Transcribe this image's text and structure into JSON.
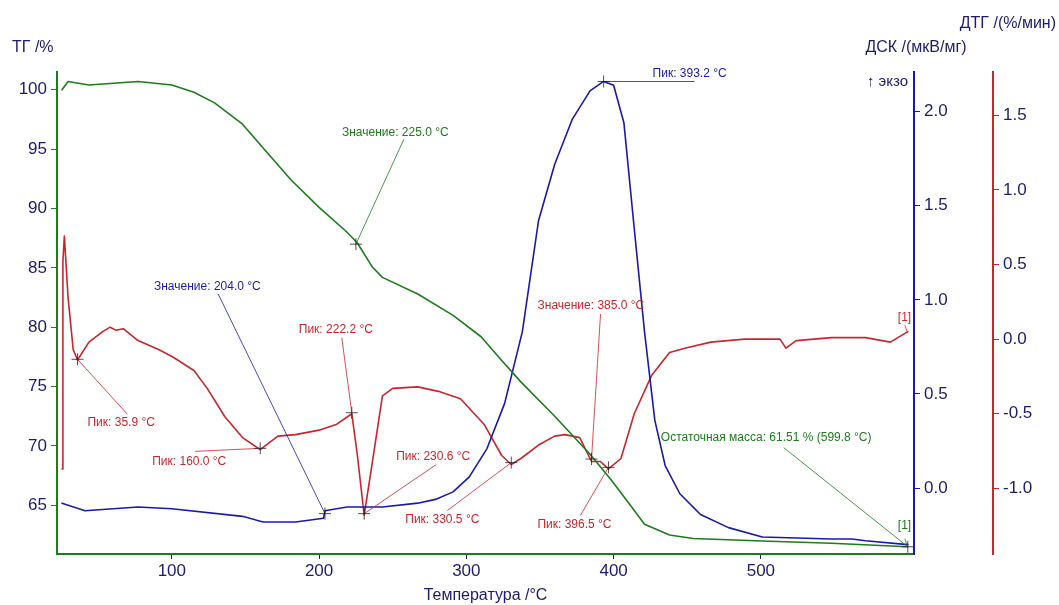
{
  "chart_data": {
    "type": "line",
    "xlabel": "Температура /°C",
    "ylabel": "ТГ /%",
    "y2label": "ДСК /(мкВ/мг)",
    "y3label": "ДТГ /(%/мин)",
    "xlim": [
      22,
      604
    ],
    "xticks": [
      100,
      200,
      300,
      400,
      500
    ],
    "ylim": [
      60.9,
      101.5
    ],
    "yticks": [
      65,
      70,
      75,
      80,
      85,
      90,
      95,
      100
    ],
    "y2lim": [
      -0.35,
      2.21
    ],
    "y2ticks": [
      {
        "value": 0,
        "label": "0.0"
      },
      {
        "value": 0.5,
        "label": "0.5"
      },
      {
        "value": 1,
        "label": "1.0"
      },
      {
        "value": 1.5,
        "label": "1.5"
      },
      {
        "value": 2,
        "label": "2.0"
      }
    ],
    "y3lim": [
      -1.44,
      1.79
    ],
    "y3ticks": [
      {
        "value": -1,
        "label": "-1.0"
      },
      {
        "value": -0.5,
        "label": "-0.5"
      },
      {
        "value": 0,
        "label": "0.0"
      },
      {
        "value": 0.5,
        "label": "0.5"
      },
      {
        "value": 1,
        "label": "1.0"
      },
      {
        "value": 1.5,
        "label": "1.5"
      }
    ],
    "grid": false,
    "legend": false,
    "marker": "none",
    "series": [
      {
        "color": "#1e7b1e",
        "x": [
          25.4,
          29.5,
          43.7,
          77,
          100,
          115,
          129,
          148,
          162,
          181,
          200,
          219,
          226,
          236,
          243,
          267,
          291,
          310,
          324,
          337,
          360,
          384,
          398,
          412,
          421,
          438,
          454,
          501,
          548,
          599.8
        ],
        "values": [
          100.0,
          100.7,
          100.4,
          100.7,
          100.4,
          99.8,
          98.9,
          97.1,
          95.1,
          92.4,
          90.1,
          88.0,
          87.1,
          85.1,
          84.2,
          82.8,
          81.0,
          79.2,
          77.2,
          75.4,
          72.5,
          69.3,
          67.2,
          64.9,
          63.4,
          62.5,
          62.2,
          62.0,
          61.8,
          61.51
        ]
      },
      {
        "color": "#1a1aa8",
        "axis": "y2",
        "x": [
          25.4,
          41,
          77,
          100,
          148,
          162,
          184,
          203,
          204,
          219,
          229,
          243,
          267,
          279,
          291,
          302,
          314,
          326,
          338,
          349,
          360,
          372,
          384,
          393.2,
          400,
          407,
          414,
          421,
          428,
          435,
          445,
          459,
          478,
          501,
          548,
          562,
          571,
          599.8
        ],
        "values": [
          -0.08,
          -0.12,
          -0.1,
          -0.11,
          -0.15,
          -0.18,
          -0.18,
          -0.16,
          -0.12,
          -0.1,
          -0.1,
          -0.1,
          -0.08,
          -0.06,
          -0.02,
          0.06,
          0.21,
          0.45,
          0.83,
          1.42,
          1.72,
          1.96,
          2.11,
          2.16,
          2.14,
          1.94,
          1.38,
          0.83,
          0.36,
          0.12,
          -0.03,
          -0.14,
          -0.21,
          -0.26,
          -0.27,
          -0.27,
          -0.28,
          -0.3
        ]
      },
      {
        "color": "#c8262c",
        "axis": "y3",
        "x": [
          25.4,
          26,
          27,
          29.5,
          33,
          35.9,
          43.7,
          53,
          58,
          62,
          67,
          77,
          91,
          100.7,
          115,
          124,
          136,
          148,
          160,
          172,
          184,
          200,
          212,
          222.2,
          226,
          230.6,
          235,
          243,
          250,
          267,
          281,
          296,
          312,
          324,
          330.5,
          337,
          349,
          360,
          367,
          377,
          385,
          391,
          396.5,
          405,
          414,
          426,
          438,
          449,
          466,
          489,
          513,
          517,
          524,
          548,
          571,
          588,
          599.8
        ],
        "values": [
          -0.87,
          0.52,
          0.69,
          0.28,
          -0.07,
          -0.14,
          -0.02,
          0.05,
          0.08,
          0.06,
          0.07,
          -0.01,
          -0.07,
          -0.12,
          -0.21,
          -0.33,
          -0.52,
          -0.66,
          -0.74,
          -0.65,
          -0.64,
          -0.61,
          -0.57,
          -0.5,
          -0.78,
          -1.18,
          -0.9,
          -0.38,
          -0.33,
          -0.32,
          -0.35,
          -0.4,
          -0.57,
          -0.78,
          -0.84,
          -0.8,
          -0.71,
          -0.65,
          -0.64,
          -0.66,
          -0.82,
          -0.82,
          -0.87,
          -0.8,
          -0.5,
          -0.24,
          -0.09,
          -0.06,
          -0.02,
          0.0,
          0.0,
          -0.06,
          -0.01,
          0.01,
          0.01,
          -0.02,
          0.05
        ]
      }
    ],
    "annotations": [
      {
        "text": "Значение: 225.0 °C",
        "x": 225,
        "y": 87.0
      },
      {
        "text": "Значение: 204.0 °C",
        "x": 204,
        "y": 64.3
      },
      {
        "text": "Пик: 35.9 °C",
        "x": 35.9,
        "y": 77.3
      },
      {
        "text": "Пик: 160.0 °C",
        "x": 160,
        "y": 69.8
      },
      {
        "text": "Пик: 222.2 °C",
        "x": 222.2,
        "y": 72.8
      },
      {
        "text": "Пик: 230.6 °C",
        "x": 230.6,
        "y": 64.3
      },
      {
        "text": "Пик: 330.5 °C",
        "x": 330.5,
        "y": 68.6
      },
      {
        "text": "Пик: 393.2 °C",
        "x": 393.2,
        "y": 100.7
      },
      {
        "text": "Значение: 385.0 °C",
        "x": 385,
        "y": 68.9
      },
      {
        "text": "Пик: 396.5 °C",
        "x": 396.5,
        "y": 68.2
      },
      {
        "text": "Остаточная масса: 61.51 % (599.8 °C)",
        "x": 599.8,
        "y": 61.51
      },
      {
        "text": "[1]",
        "x": 599.8,
        "y": 79.5
      },
      {
        "text": "[1]",
        "x": 599.8,
        "y": 61.51
      },
      "↑ экзо"
    ]
  }
}
